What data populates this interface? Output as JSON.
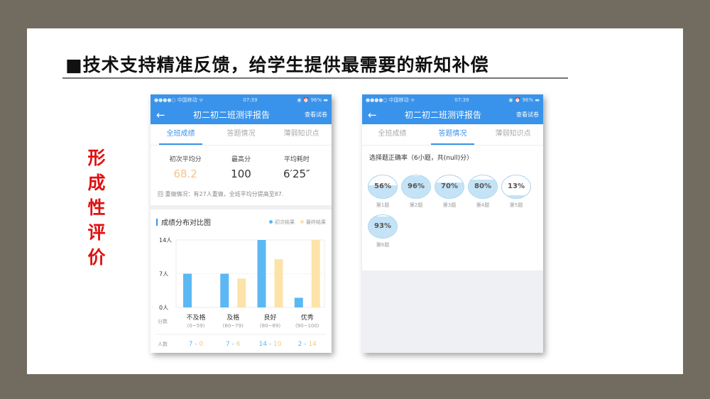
{
  "slide": {
    "title": "■技术支持精准反馈，给学生提供最需要的新知补偿",
    "side_label": "形成性评价"
  },
  "phone": {
    "status_left": "●●●●○ 中国移动 ᯤ",
    "time": "07:39",
    "status_right": "◉ ⏰ 96% ▬",
    "back_icon": "arrow-left-icon",
    "title": "初二初二班测评报告",
    "exam_link": "查看试卷",
    "tabs": [
      {
        "label": "全班成绩"
      },
      {
        "label": "答题情况"
      },
      {
        "label": "薄弱知识点"
      }
    ]
  },
  "stats": [
    {
      "label": "初次平均分",
      "value": "68.2"
    },
    {
      "label": "最高分",
      "value": "100"
    },
    {
      "label": "平均耗时",
      "value": "6′25″"
    }
  ],
  "redo": "回 重做情况：有27人重做，全班平均分提高至87.",
  "colors": {
    "accent": "#3a93ea",
    "first": "#5bb8f3",
    "final": "#fde3a8",
    "avg": "#f5c38a"
  },
  "chart_data": {
    "type": "bar",
    "title": "成绩分布对比图",
    "categories": [
      "不及格",
      "及格",
      "良好",
      "优秀"
    ],
    "ranges": [
      "(0~59)",
      "(60~79)",
      "(80~89)",
      "(90~100)"
    ],
    "series": [
      {
        "name": "初次结果",
        "values": [
          7,
          7,
          14,
          2
        ]
      },
      {
        "name": "最终结果",
        "values": [
          0,
          6,
          10,
          14
        ]
      }
    ],
    "yticks": [
      "0人",
      "7人",
      "14人"
    ],
    "ylim": [
      0,
      14
    ],
    "row_label_score": "分数",
    "row_label_count": "人数"
  },
  "questions": {
    "header": "选择题正确率（6小题，共(null)分）",
    "items": [
      {
        "rate": "56%",
        "value": 56,
        "label": "第1题"
      },
      {
        "rate": "96%",
        "value": 96,
        "label": "第2题"
      },
      {
        "rate": "70%",
        "value": 70,
        "label": "第3题"
      },
      {
        "rate": "80%",
        "value": 80,
        "label": "第4题"
      },
      {
        "rate": "13%",
        "value": 13,
        "label": "第5题"
      },
      {
        "rate": "93%",
        "value": 93,
        "label": "第6题"
      }
    ]
  }
}
